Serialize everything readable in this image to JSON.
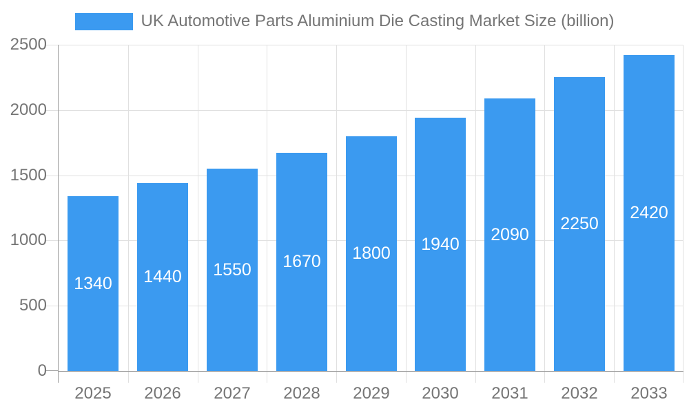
{
  "chart_data": {
    "type": "bar",
    "title": "UK Automotive Parts Aluminium Die Casting Market Size (billion)",
    "categories": [
      "2025",
      "2026",
      "2027",
      "2028",
      "2029",
      "2030",
      "2031",
      "2032",
      "2033"
    ],
    "values": [
      1340,
      1440,
      1550,
      1670,
      1800,
      1940,
      2090,
      2250,
      2420
    ],
    "xlabel": "",
    "ylabel": "",
    "ylim": [
      0,
      2500
    ],
    "yticks": [
      0,
      500,
      1000,
      1500,
      2000,
      2500
    ],
    "ytick_labels": [
      "0",
      "500",
      "1000",
      "1500",
      "2000",
      "2500"
    ],
    "grid": true,
    "legend_position": "top",
    "colors": {
      "bar": "#3B9AF0",
      "bar_label": "#FFFFFF",
      "title_text": "#757575",
      "axis_text": "#757575",
      "grid_line": "#E0E0E0",
      "axis_line": "#9E9E9E"
    }
  }
}
